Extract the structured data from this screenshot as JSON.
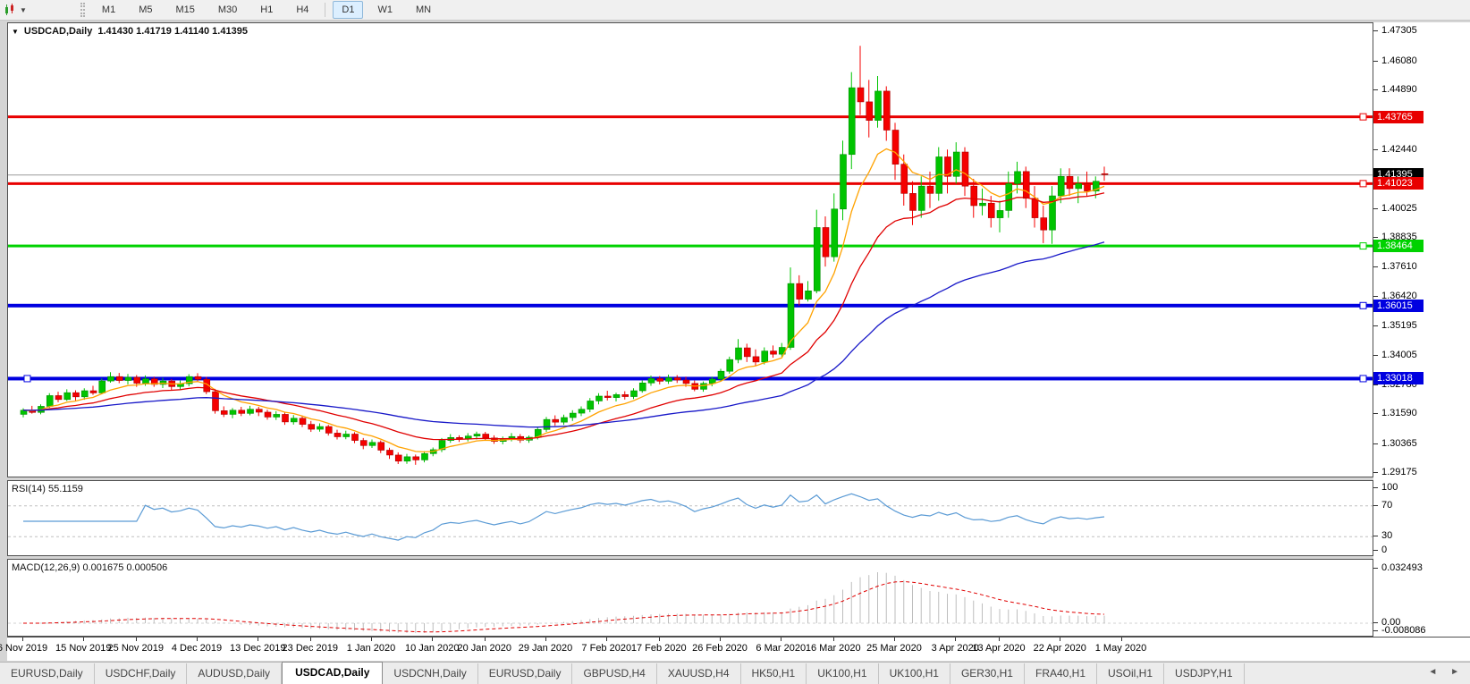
{
  "toolbar": {
    "chart_type_icon": "candlestick-chart-icon",
    "dropdown": "▼",
    "timeframes": [
      "M1",
      "M5",
      "M15",
      "M30",
      "H1",
      "H4",
      "D1",
      "W1",
      "MN"
    ],
    "active_timeframe": "D1"
  },
  "chart": {
    "collapse_icon": "▼",
    "title": "USDCAD,Daily",
    "ohlc": "1.41430 1.41719 1.41140 1.41395"
  },
  "indicators": {
    "rsi": {
      "label": "RSI(14) 55.1159",
      "period": 14,
      "value": 55.1159
    },
    "macd": {
      "label": "MACD(12,26,9) 0.001675 0.000506",
      "main": 0.001675,
      "signal": 0.000506
    }
  },
  "chart_data": {
    "type": "candlestick",
    "symbol": "USDCAD",
    "timeframe": "Daily",
    "current_bar": {
      "open": 1.4143,
      "high": 1.41719,
      "low": 1.4114,
      "close": 1.41395
    },
    "price_range": [
      1.2907,
      1.4757
    ],
    "y_axis_ticks": [
      1.47305,
      1.4608,
      1.4489,
      1.43665,
      1.4244,
      1.41215,
      1.40025,
      1.38835,
      1.3761,
      1.3642,
      1.35195,
      1.34005,
      1.3278,
      1.3159,
      1.30365,
      1.29175
    ],
    "x_axis_labels": [
      {
        "label": "6 Nov 2019",
        "i": 0
      },
      {
        "label": "15 Nov 2019",
        "i": 7
      },
      {
        "label": "25 Nov 2019",
        "i": 13
      },
      {
        "label": "4 Dec 2019",
        "i": 20
      },
      {
        "label": "13 Dec 2019",
        "i": 27
      },
      {
        "label": "23 Dec 2019",
        "i": 33
      },
      {
        "label": "1 Jan 2020",
        "i": 40
      },
      {
        "label": "10 Jan 2020",
        "i": 47
      },
      {
        "label": "20 Jan 2020",
        "i": 53
      },
      {
        "label": "29 Jan 2020",
        "i": 60
      },
      {
        "label": "7 Feb 2020",
        "i": 67
      },
      {
        "label": "17 Feb 2020",
        "i": 73
      },
      {
        "label": "26 Feb 2020",
        "i": 80
      },
      {
        "label": "6 Mar 2020",
        "i": 87
      },
      {
        "label": "16 Mar 2020",
        "i": 93
      },
      {
        "label": "25 Mar 2020",
        "i": 100
      },
      {
        "label": "3 Apr 2020",
        "i": 107
      },
      {
        "label": "13 Apr 2020",
        "i": 112
      },
      {
        "label": "22 Apr 2020",
        "i": 119
      },
      {
        "label": "1 May 2020",
        "i": 126
      }
    ],
    "candles": [
      [
        1.3155,
        1.318,
        1.3143,
        1.3172
      ],
      [
        1.3172,
        1.319,
        1.3158,
        1.3163
      ],
      [
        1.3163,
        1.3196,
        1.3155,
        1.3188
      ],
      [
        1.3188,
        1.3242,
        1.3182,
        1.3232
      ],
      [
        1.3232,
        1.3248,
        1.3205,
        1.3216
      ],
      [
        1.3216,
        1.3258,
        1.321,
        1.3244
      ],
      [
        1.3244,
        1.3254,
        1.3212,
        1.3227
      ],
      [
        1.3227,
        1.3262,
        1.3215,
        1.3252
      ],
      [
        1.3252,
        1.3272,
        1.3235,
        1.3243
      ],
      [
        1.3243,
        1.3302,
        1.3238,
        1.3292
      ],
      [
        1.3292,
        1.3328,
        1.3285,
        1.331
      ],
      [
        1.331,
        1.3325,
        1.3283,
        1.3294
      ],
      [
        1.3294,
        1.3321,
        1.3278,
        1.3307
      ],
      [
        1.3307,
        1.3316,
        1.3268,
        1.3283
      ],
      [
        1.3283,
        1.3315,
        1.3272,
        1.3301
      ],
      [
        1.3301,
        1.331,
        1.3268,
        1.3278
      ],
      [
        1.3278,
        1.3305,
        1.3263,
        1.3292
      ],
      [
        1.3292,
        1.33,
        1.3254,
        1.3269
      ],
      [
        1.3269,
        1.3294,
        1.3258,
        1.3281
      ],
      [
        1.3281,
        1.332,
        1.327,
        1.331
      ],
      [
        1.331,
        1.3324,
        1.3288,
        1.3299
      ],
      [
        1.3299,
        1.3309,
        1.3238,
        1.3248
      ],
      [
        1.3248,
        1.326,
        1.3158,
        1.317
      ],
      [
        1.317,
        1.3188,
        1.3144,
        1.3155
      ],
      [
        1.3155,
        1.3181,
        1.3139,
        1.3172
      ],
      [
        1.3172,
        1.3186,
        1.3148,
        1.3159
      ],
      [
        1.3159,
        1.319,
        1.3151,
        1.3176
      ],
      [
        1.3176,
        1.3186,
        1.3148,
        1.3164
      ],
      [
        1.3164,
        1.3174,
        1.3133,
        1.3144
      ],
      [
        1.3144,
        1.3168,
        1.3132,
        1.3155
      ],
      [
        1.3155,
        1.3164,
        1.3112,
        1.3124
      ],
      [
        1.3124,
        1.3152,
        1.3113,
        1.3139
      ],
      [
        1.3139,
        1.3148,
        1.3103,
        1.3114
      ],
      [
        1.3114,
        1.3128,
        1.3083,
        1.3094
      ],
      [
        1.3094,
        1.3118,
        1.3084,
        1.3105
      ],
      [
        1.3105,
        1.3112,
        1.3068,
        1.3078
      ],
      [
        1.3078,
        1.3092,
        1.3052,
        1.3063
      ],
      [
        1.3063,
        1.3088,
        1.3053,
        1.3074
      ],
      [
        1.3074,
        1.3082,
        1.3037,
        1.3048
      ],
      [
        1.3048,
        1.3058,
        1.3012,
        1.3027
      ],
      [
        1.3027,
        1.3052,
        1.3017,
        1.304
      ],
      [
        1.304,
        1.3048,
        1.2996,
        1.3008
      ],
      [
        1.3008,
        1.3018,
        1.2972,
        1.2988
      ],
      [
        1.2988,
        1.2999,
        1.2951,
        1.2963
      ],
      [
        1.2963,
        1.2993,
        1.2952,
        1.2981
      ],
      [
        1.2981,
        1.299,
        1.2948,
        1.2968
      ],
      [
        1.2968,
        1.3004,
        1.2958,
        1.2994
      ],
      [
        1.2994,
        1.3019,
        1.2983,
        1.301
      ],
      [
        1.301,
        1.3058,
        1.3,
        1.3048
      ],
      [
        1.3048,
        1.3074,
        1.3038,
        1.306
      ],
      [
        1.306,
        1.3069,
        1.3042,
        1.3054
      ],
      [
        1.3054,
        1.3078,
        1.3044,
        1.3066
      ],
      [
        1.3066,
        1.3084,
        1.3052,
        1.3074
      ],
      [
        1.3074,
        1.3083,
        1.3048,
        1.3058
      ],
      [
        1.3058,
        1.3069,
        1.3034,
        1.3044
      ],
      [
        1.3044,
        1.3064,
        1.3032,
        1.3055
      ],
      [
        1.3055,
        1.3078,
        1.3044,
        1.3064
      ],
      [
        1.3064,
        1.3074,
        1.3038,
        1.3049
      ],
      [
        1.3049,
        1.3068,
        1.3038,
        1.3061
      ],
      [
        1.3061,
        1.3104,
        1.3052,
        1.3093
      ],
      [
        1.3093,
        1.3144,
        1.3083,
        1.3134
      ],
      [
        1.3134,
        1.3151,
        1.3108,
        1.3123
      ],
      [
        1.3123,
        1.3154,
        1.3112,
        1.3142
      ],
      [
        1.3142,
        1.3172,
        1.3128,
        1.316
      ],
      [
        1.316,
        1.3188,
        1.3148,
        1.3176
      ],
      [
        1.3176,
        1.3222,
        1.3164,
        1.321
      ],
      [
        1.321,
        1.3242,
        1.3196,
        1.323
      ],
      [
        1.323,
        1.3252,
        1.3212,
        1.3224
      ],
      [
        1.3224,
        1.3244,
        1.3208,
        1.3236
      ],
      [
        1.3236,
        1.325,
        1.3216,
        1.3228
      ],
      [
        1.3228,
        1.3262,
        1.3218,
        1.3252
      ],
      [
        1.3252,
        1.3294,
        1.3244,
        1.3284
      ],
      [
        1.3284,
        1.3314,
        1.3272,
        1.3302
      ],
      [
        1.3302,
        1.3312,
        1.3278,
        1.3291
      ],
      [
        1.3291,
        1.3318,
        1.328,
        1.3305
      ],
      [
        1.3305,
        1.3316,
        1.3284,
        1.3296
      ],
      [
        1.3296,
        1.331,
        1.3268,
        1.3282
      ],
      [
        1.3282,
        1.3294,
        1.325,
        1.3258
      ],
      [
        1.3258,
        1.329,
        1.3248,
        1.3282
      ],
      [
        1.3282,
        1.331,
        1.327,
        1.33
      ],
      [
        1.33,
        1.3342,
        1.329,
        1.3332
      ],
      [
        1.3332,
        1.3392,
        1.3322,
        1.338
      ],
      [
        1.338,
        1.3464,
        1.3365,
        1.3428
      ],
      [
        1.3428,
        1.3445,
        1.337,
        1.3392
      ],
      [
        1.3392,
        1.3422,
        1.3354,
        1.337
      ],
      [
        1.337,
        1.343,
        1.336,
        1.3415
      ],
      [
        1.3415,
        1.3438,
        1.3388,
        1.3402
      ],
      [
        1.3402,
        1.3448,
        1.3392,
        1.343
      ],
      [
        1.343,
        1.3758,
        1.342,
        1.3692
      ],
      [
        1.3692,
        1.3726,
        1.3602,
        1.3628
      ],
      [
        1.3628,
        1.3702,
        1.3618,
        1.3662
      ],
      [
        1.3662,
        1.3995,
        1.3652,
        1.3922
      ],
      [
        1.3922,
        1.3968,
        1.3762,
        1.3802
      ],
      [
        1.3802,
        1.4062,
        1.3782,
        1.3998
      ],
      [
        1.3998,
        1.4279,
        1.3952,
        1.4222
      ],
      [
        1.4222,
        1.456,
        1.4162,
        1.4496
      ],
      [
        1.4496,
        1.4668,
        1.4384,
        1.4438
      ],
      [
        1.4438,
        1.4528,
        1.4292,
        1.4362
      ],
      [
        1.4362,
        1.4544,
        1.4332,
        1.4482
      ],
      [
        1.4482,
        1.4502,
        1.4278,
        1.4322
      ],
      [
        1.4322,
        1.4352,
        1.4118,
        1.4182
      ],
      [
        1.4182,
        1.4222,
        1.4012,
        1.4062
      ],
      [
        1.4062,
        1.4112,
        1.3932,
        1.3992
      ],
      [
        1.3992,
        1.4132,
        1.3962,
        1.4092
      ],
      [
        1.4092,
        1.4152,
        1.4002,
        1.4062
      ],
      [
        1.4062,
        1.4252,
        1.4032,
        1.4212
      ],
      [
        1.4212,
        1.4242,
        1.4062,
        1.4132
      ],
      [
        1.4132,
        1.4272,
        1.4102,
        1.4232
      ],
      [
        1.4232,
        1.4252,
        1.4052,
        1.4092
      ],
      [
        1.4092,
        1.4122,
        1.3962,
        1.4012
      ],
      [
        1.4012,
        1.4082,
        1.3972,
        1.4022
      ],
      [
        1.4022,
        1.4052,
        1.3922,
        1.3962
      ],
      [
        1.3962,
        1.4032,
        1.3902,
        1.3992
      ],
      [
        1.3992,
        1.4152,
        1.3962,
        1.4102
      ],
      [
        1.4102,
        1.4192,
        1.4062,
        1.4152
      ],
      [
        1.4152,
        1.4172,
        1.4002,
        1.4042
      ],
      [
        1.4042,
        1.4092,
        1.3922,
        1.3962
      ],
      [
        1.3962,
        1.4012,
        1.3858,
        1.3912
      ],
      [
        1.3912,
        1.4092,
        1.3855,
        1.4052
      ],
      [
        1.4052,
        1.4165,
        1.4022,
        1.4132
      ],
      [
        1.4132,
        1.4165,
        1.4052,
        1.4082
      ],
      [
        1.4082,
        1.4132,
        1.4022,
        1.4102
      ],
      [
        1.4102,
        1.4152,
        1.4052,
        1.4072
      ],
      [
        1.4072,
        1.4132,
        1.4042,
        1.4112
      ],
      [
        1.4143,
        1.41719,
        1.4114,
        1.41395
      ]
    ],
    "horizontal_lines": [
      {
        "price": 1.43765,
        "label": "1.43765",
        "color": "#e80000",
        "width": 3
      },
      {
        "price": 1.41023,
        "label": "1.41023",
        "color": "#e80000",
        "width": 3
      },
      {
        "price": 1.38464,
        "label": "1.38464",
        "color": "#00d200",
        "width": 3
      },
      {
        "price": 1.36015,
        "label": "1.36015",
        "color": "#0000e0",
        "width": 4
      },
      {
        "price": 1.33018,
        "label": "1.33018",
        "color": "#0000e0",
        "width": 4
      }
    ],
    "current_price_line": {
      "price": 1.41395,
      "label": "1.41395",
      "line_color": "#9a9a9a",
      "badge_color": "#000000"
    },
    "moving_averages": [
      {
        "name": "fast",
        "period": 8,
        "color": "#ffa200"
      },
      {
        "name": "medium",
        "period": 20,
        "color": "#e00000"
      },
      {
        "name": "slow",
        "period": 55,
        "color": "#1818c8"
      }
    ],
    "rsi_panel": {
      "levels": [
        70,
        30
      ],
      "ticks": [
        100,
        70,
        30,
        0
      ],
      "line_color": "#5b9bd5",
      "level_color": "#c0c0c0"
    },
    "macd_panel": {
      "ticks": [
        {
          "v": 0.032493,
          "t": "0.032493"
        },
        {
          "v": 0,
          "t": "0.00"
        },
        {
          "v": -0.008086,
          "t": "-0.008086"
        }
      ],
      "histogram_color": "#bdbdbd",
      "signal_color": "#e00000"
    },
    "candle_colors": {
      "bull": "#00c400",
      "bull_edge": "#009000",
      "bear": "#f50000",
      "bear_edge": "#a80000"
    }
  },
  "tabs": {
    "items": [
      {
        "label": "EURUSD,Daily",
        "active": false
      },
      {
        "label": "USDCHF,Daily",
        "active": false
      },
      {
        "label": "AUDUSD,Daily",
        "active": false
      },
      {
        "label": "USDCAD,Daily",
        "active": true
      },
      {
        "label": "USDCNH,Daily",
        "active": false
      },
      {
        "label": "EURUSD,Daily",
        "active": false
      },
      {
        "label": "GBPUSD,H4",
        "active": false
      },
      {
        "label": "XAUUSD,H4",
        "active": false
      },
      {
        "label": "HK50,H1",
        "active": false
      },
      {
        "label": "UK100,H1",
        "active": false
      },
      {
        "label": "UK100,H1",
        "active": false
      },
      {
        "label": "GER30,H1",
        "active": false
      },
      {
        "label": "FRA40,H1",
        "active": false
      },
      {
        "label": "USOil,H1",
        "active": false
      },
      {
        "label": "USDJPY,H1",
        "active": false
      }
    ],
    "scroll_arrows": "◄ ►"
  }
}
